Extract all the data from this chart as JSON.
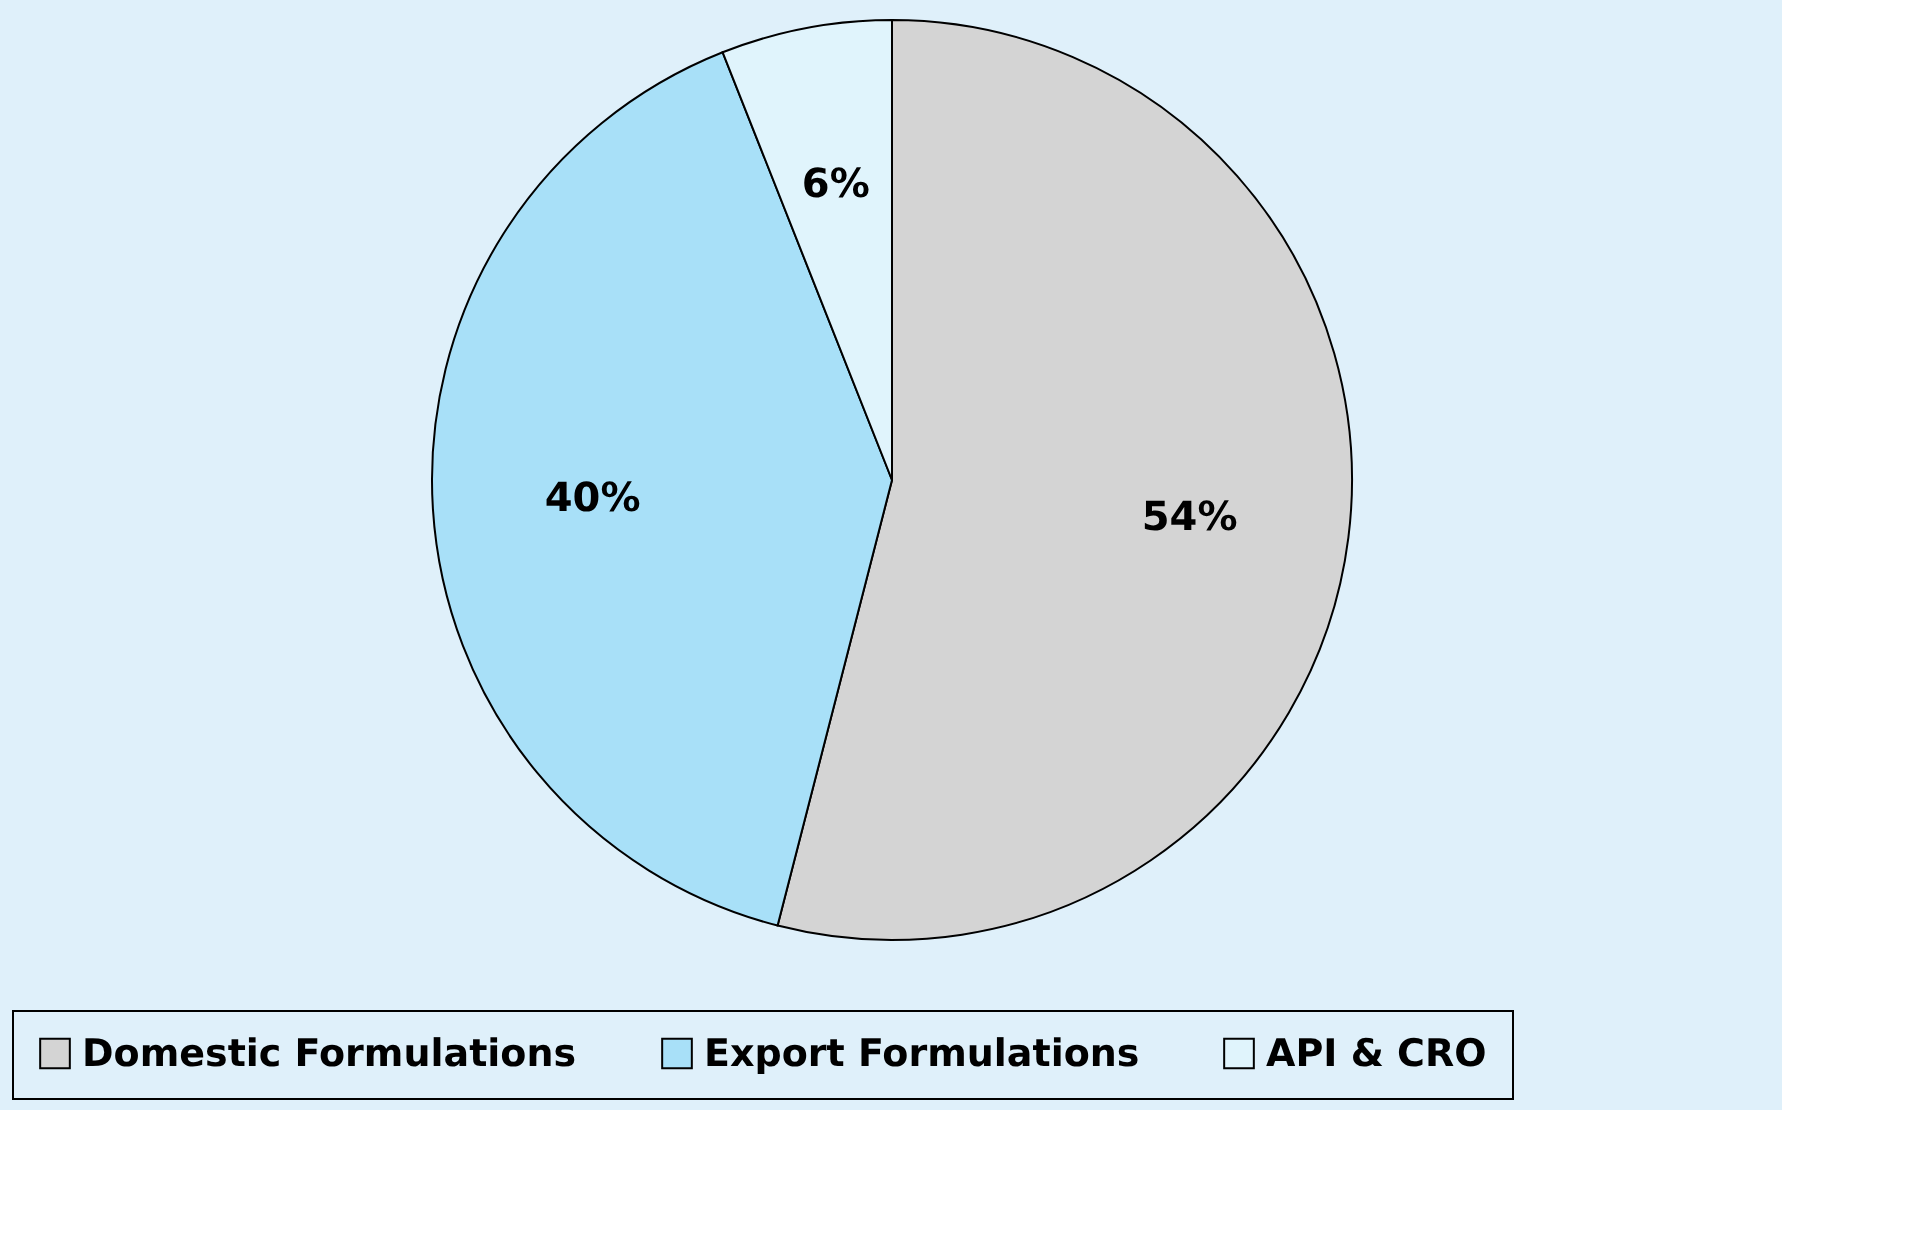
{
  "chart_data": {
    "type": "pie",
    "categories": [
      "Domestic Formulations",
      "Export Formulations",
      "API & CRO"
    ],
    "values": [
      54,
      40,
      6
    ],
    "colors": [
      "#d4d4d4",
      "#a8e0f8",
      "#e0f4fc"
    ],
    "value_labels": [
      "54%",
      "40%",
      "6%"
    ],
    "legend": "bottom"
  }
}
